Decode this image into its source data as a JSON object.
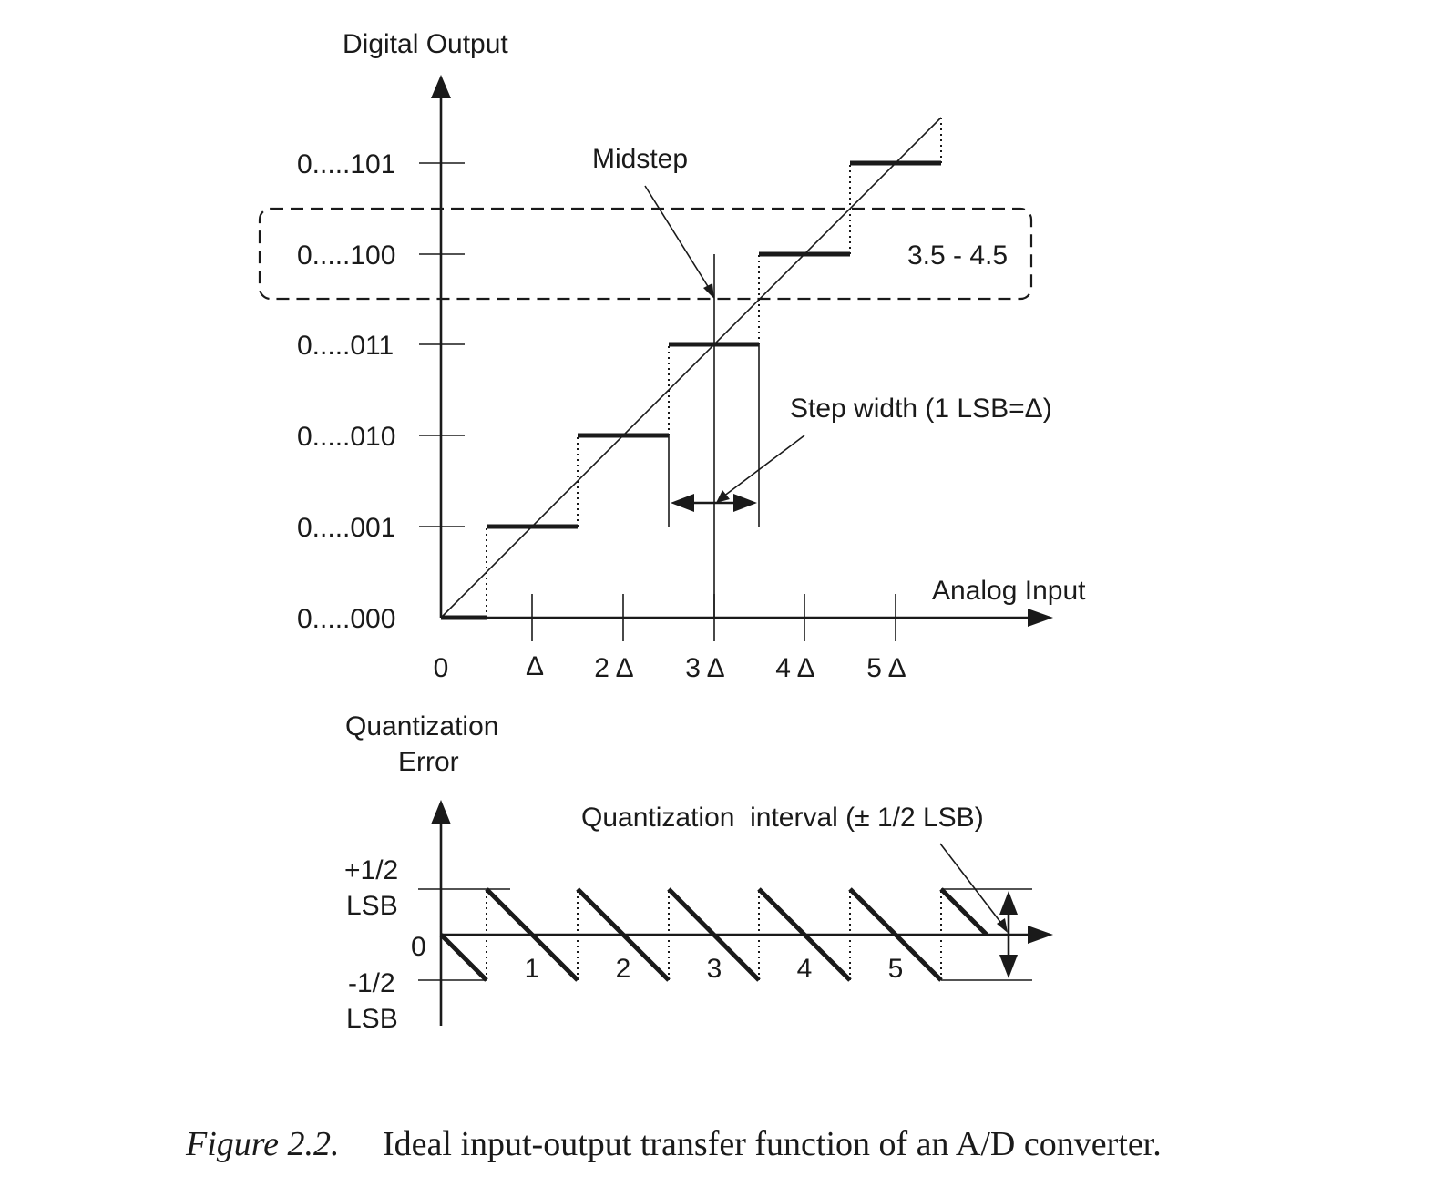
{
  "top_plot": {
    "y_axis_title": "Digital Output",
    "x_axis_title": "Analog Input",
    "y_ticks": [
      "0.....000",
      "0.....001",
      "0.....010",
      "0.....011",
      "0.....100",
      "0.....101"
    ],
    "x_ticks": [
      "0",
      "Δ",
      "2 Δ",
      "3 Δ",
      "4 Δ",
      "5 Δ"
    ],
    "midstep_label": "Midstep",
    "range_label": "3.5 - 4.5",
    "step_width_label": "Step width (1 LSB=Δ)"
  },
  "bottom_plot": {
    "y_axis_title_line1": "Quantization",
    "y_axis_title_line2": "Error",
    "y_ticks": {
      "plus_line1": "+1/2",
      "plus_line2": "LSB",
      "zero": "0",
      "minus_line1": "-1/2",
      "minus_line2": "LSB"
    },
    "interval_labels": [
      "1",
      "2",
      "3",
      "4",
      "5"
    ],
    "interval_annotation": "Quantization  interval (± 1/2 LSB)"
  },
  "caption": {
    "figure_label": "Figure 2.2.",
    "text": "Ideal input-output transfer function of an A/D converter."
  }
}
